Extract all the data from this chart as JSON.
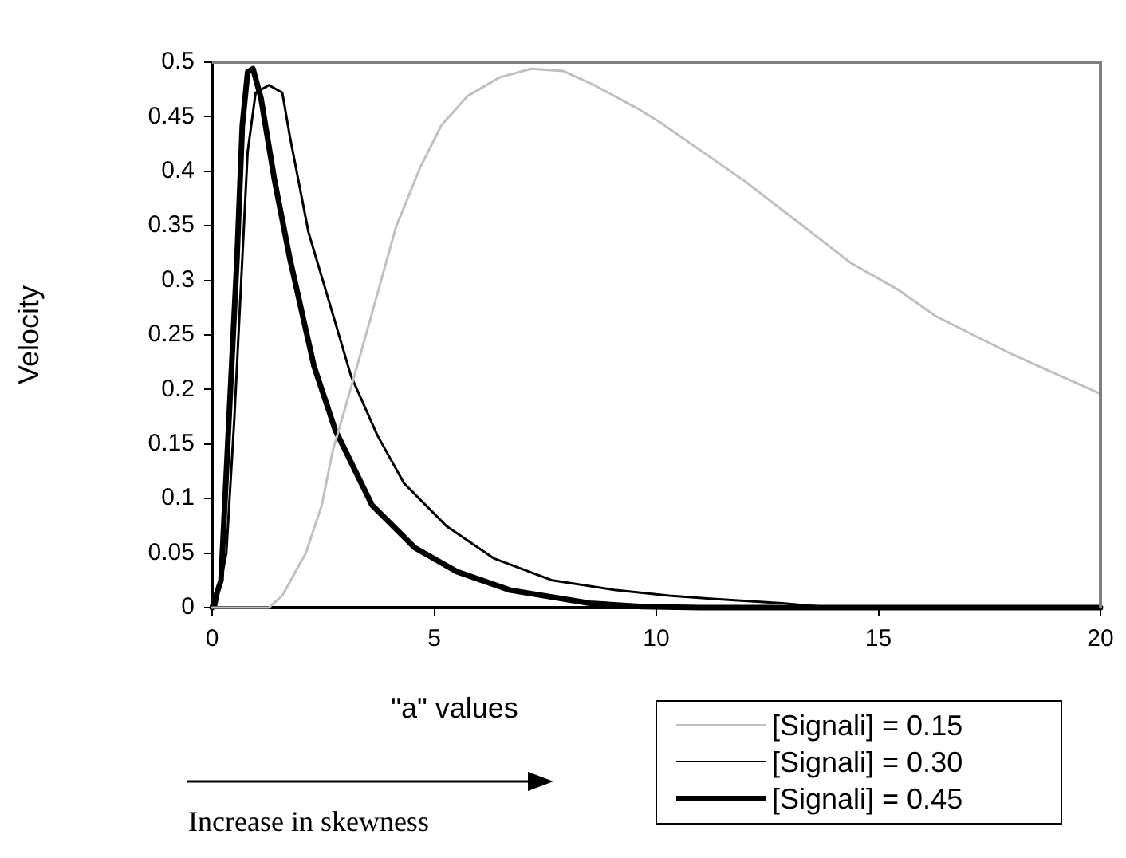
{
  "chart_data": {
    "type": "line",
    "xlabel": "\"a\" values",
    "ylabel": "Velocity",
    "xlim": [
      0,
      20
    ],
    "xticks": [
      0,
      5,
      10,
      15,
      20
    ],
    "ylim": [
      0,
      0.5
    ],
    "yticks": [
      0,
      0.05,
      0.1,
      0.15,
      0.2,
      0.25,
      0.3,
      0.35,
      0.4,
      0.45,
      0.5
    ],
    "grid": false,
    "legend": "bottom right",
    "marker": "none",
    "line_style": "solid",
    "annotations": [
      "Increase in skewness"
    ],
    "series": [
      {
        "name": "[Signali] = 0.15",
        "color": "#c0c0c0",
        "x": [
          0,
          1.28,
          1.58,
          2.11,
          2.47,
          2.71,
          3.13,
          3.6,
          4.14,
          4.68,
          5.16,
          5.75,
          6.47,
          7.18,
          7.9,
          8.6,
          9.6,
          10.08,
          11.99,
          14.38,
          15.46,
          16.3,
          17.97,
          20
        ],
        "values": [
          0,
          0,
          0.011,
          0.05,
          0.094,
          0.143,
          0.202,
          0.27,
          0.349,
          0.403,
          0.442,
          0.469,
          0.486,
          0.494,
          0.492,
          0.479,
          0.457,
          0.445,
          0.391,
          0.316,
          0.291,
          0.267,
          0.233,
          0.196
        ]
      },
      {
        "name": "[Signali] = 0.30",
        "color": "#000000",
        "x": [
          0,
          0.08,
          0.32,
          0.5,
          0.68,
          0.8,
          0.98,
          1.28,
          1.58,
          1.75,
          2.17,
          2.71,
          3.13,
          3.72,
          4.32,
          5.27,
          6.35,
          7.66,
          9.09,
          10.29,
          11.27,
          12.83,
          14,
          20
        ],
        "values": [
          0,
          0,
          0.05,
          0.173,
          0.32,
          0.418,
          0.472,
          0.479,
          0.472,
          0.432,
          0.344,
          0.27,
          0.212,
          0.158,
          0.114,
          0.075,
          0.045,
          0.025,
          0.016,
          0.011,
          0.008,
          0.004,
          0,
          0
        ]
      },
      {
        "name": "[Signali] = 0.45",
        "color": "#000000",
        "x": [
          0,
          0.02,
          0.2,
          0.38,
          0.56,
          0.68,
          0.8,
          0.92,
          1.1,
          1.4,
          1.75,
          2.29,
          2.77,
          3.6,
          4.56,
          5.51,
          6.71,
          8.5,
          9.69,
          11,
          20
        ],
        "values": [
          0,
          0,
          0.025,
          0.173,
          0.32,
          0.442,
          0.491,
          0.494,
          0.467,
          0.393,
          0.32,
          0.222,
          0.163,
          0.094,
          0.055,
          0.033,
          0.016,
          0.004,
          0.001,
          0,
          0
        ]
      }
    ]
  }
}
